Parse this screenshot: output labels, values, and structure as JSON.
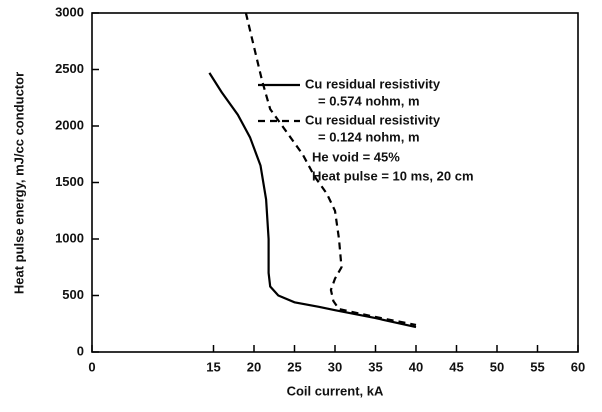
{
  "chart_data": {
    "type": "line",
    "xlabel": "Coil current, kA",
    "ylabel": "Heat pulse energy, mJ/cc conductor",
    "xlim": [
      0,
      60
    ],
    "xticks": [
      0,
      15,
      20,
      25,
      30,
      35,
      40,
      45,
      50,
      55,
      60
    ],
    "ylim": [
      0,
      3000
    ],
    "yticks": [
      0,
      500,
      1000,
      1500,
      2000,
      2500,
      3000
    ],
    "color": "#000000",
    "series": [
      {
        "name": "Cu residual resistivity",
        "name_line2": "= 0.574 nohm, m",
        "dash": false,
        "x": [
          14.5,
          16,
          18,
          19.5,
          20.8,
          21.5,
          21.8,
          21.8,
          22,
          23,
          25,
          28,
          30,
          35,
          40
        ],
        "values": [
          2470,
          2300,
          2100,
          1900,
          1650,
          1350,
          1000,
          700,
          580,
          500,
          440,
          400,
          370,
          300,
          220
        ]
      },
      {
        "name": "Cu residual resistivity",
        "name_line2": "= 0.124 nohm, m",
        "dash": true,
        "x": [
          19,
          20,
          21,
          22,
          24,
          26,
          27.5,
          29,
          30,
          30.5,
          30.8,
          30,
          29.5,
          29.8,
          30.5,
          35,
          40
        ],
        "values": [
          3000,
          2700,
          2400,
          2150,
          1950,
          1750,
          1550,
          1400,
          1250,
          1000,
          750,
          650,
          550,
          450,
          380,
          310,
          240
        ]
      }
    ],
    "annotations": [
      "He void = 45%",
      "Heat pulse = 10 ms, 20 cm"
    ]
  }
}
